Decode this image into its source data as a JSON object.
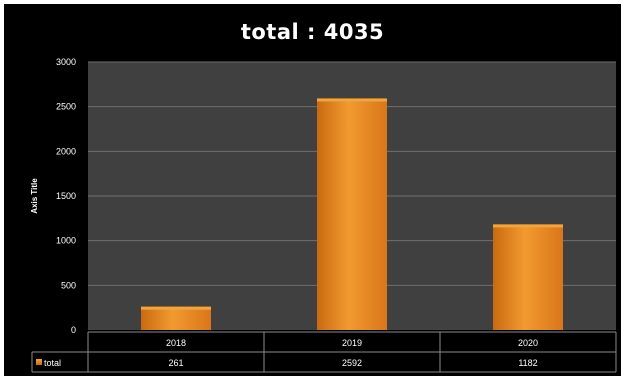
{
  "chart_data": {
    "type": "bar",
    "title": "total : 4035",
    "xlabel": "",
    "ylabel": "Axis Title",
    "categories": [
      "2018",
      "2019",
      "2020"
    ],
    "series": [
      {
        "name": "total",
        "values": [
          261,
          2592,
          1182
        ]
      }
    ],
    "value_labels": [
      "261",
      "2592",
      "1182"
    ],
    "ylim": [
      0,
      3000
    ],
    "yticks": [
      0,
      500,
      1000,
      1500,
      2000,
      2500,
      3000
    ],
    "ytick_labels": [
      "0",
      "500",
      "1000",
      "1500",
      "2000",
      "2500",
      "3000"
    ],
    "grid": true,
    "legend": "data-table",
    "colors": {
      "background": "#000000",
      "plot_area": "#404040",
      "gridline": "#6e6e6e",
      "bar_top": "#f5a43a",
      "bar_main": "#e8821a",
      "bar_dark": "#c86a10",
      "table_border": "#8a8a8a",
      "text": "#ffffff"
    }
  }
}
